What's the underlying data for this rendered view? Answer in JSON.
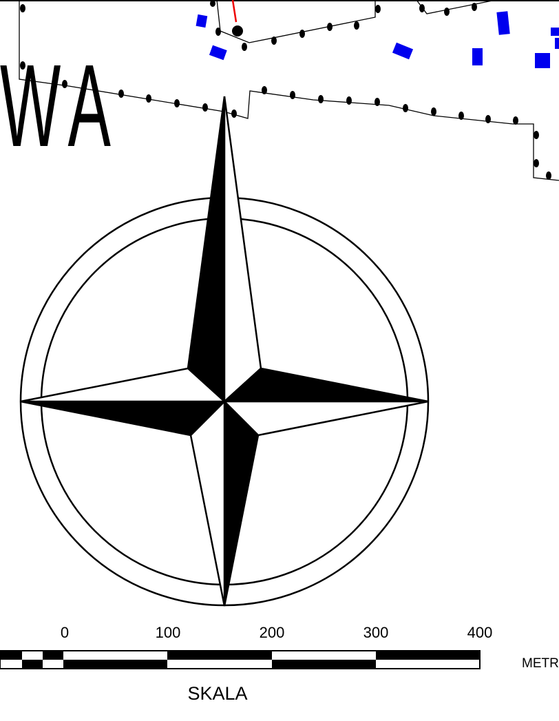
{
  "map": {
    "label": "WA",
    "scale": {
      "ticks": [
        "0",
        "100",
        "200",
        "300",
        "400"
      ],
      "unit": "METR",
      "title": "SKALA"
    }
  }
}
